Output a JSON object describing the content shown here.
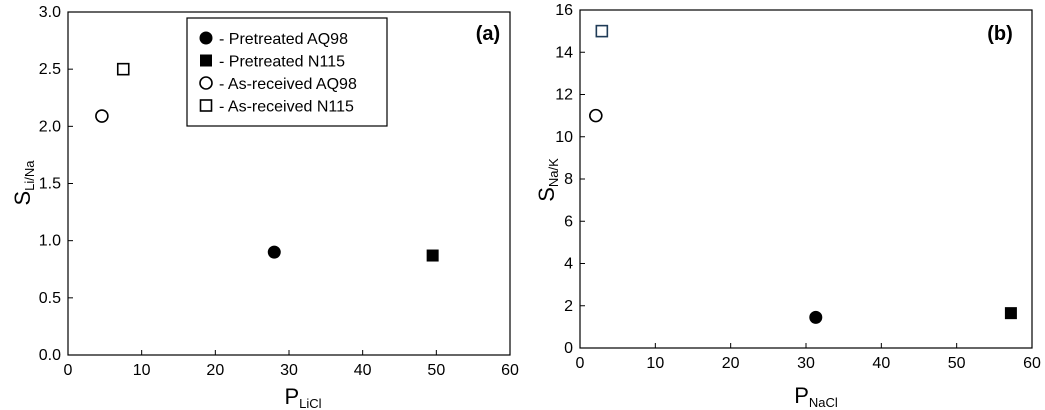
{
  "chart_data": [
    {
      "type": "scatter",
      "panel_label": "(a)",
      "xlabel": "P",
      "xlabel_sub": "LiCl",
      "ylabel": "S",
      "ylabel_sub": "Li/Na",
      "xlim": [
        0,
        60
      ],
      "ylim": [
        0,
        3
      ],
      "xticks": [
        0,
        10,
        20,
        30,
        40,
        50,
        60
      ],
      "xtick_labels": [
        "0",
        "10",
        "20",
        "30",
        "40",
        "50",
        "60"
      ],
      "yticks": [
        0,
        0.5,
        1,
        1.5,
        2,
        2.5,
        3
      ],
      "ytick_labels": [
        "0.0",
        "0.5",
        "1.0",
        "1.5",
        "2.0",
        "2.5",
        "3.0"
      ],
      "grid": false,
      "legend_position": "top-center",
      "series": [
        {
          "name": "- Pretreated AQ98",
          "marker": "filled-circle",
          "color": "#000000",
          "points": [
            {
              "x": 28,
              "y": 0.9
            }
          ]
        },
        {
          "name": "- Pretreated N115",
          "marker": "filled-square",
          "color": "#000000",
          "points": [
            {
              "x": 49.5,
              "y": 0.87
            }
          ]
        },
        {
          "name": "- As-received AQ98",
          "marker": "open-circle",
          "color": "#000000",
          "points": [
            {
              "x": 4.6,
              "y": 2.09
            }
          ]
        },
        {
          "name": "- As-received N115",
          "marker": "open-square",
          "color": "#000000",
          "points": [
            {
              "x": 7.5,
              "y": 2.5
            }
          ]
        }
      ]
    },
    {
      "type": "scatter",
      "panel_label": "(b)",
      "xlabel": "P",
      "xlabel_sub": "NaCl",
      "ylabel": "S",
      "ylabel_sub": "Na/K",
      "xlim": [
        0,
        60
      ],
      "ylim": [
        0,
        16
      ],
      "xticks": [
        0,
        10,
        20,
        30,
        40,
        50,
        60
      ],
      "xtick_labels": [
        "0",
        "10",
        "20",
        "30",
        "40",
        "50",
        "60"
      ],
      "yticks": [
        0,
        2,
        4,
        6,
        8,
        10,
        12,
        14,
        16
      ],
      "ytick_labels": [
        "0",
        "2",
        "4",
        "6",
        "8",
        "10",
        "12",
        "14",
        "16"
      ],
      "grid": false,
      "series": [
        {
          "name": "Pretreated AQ98",
          "marker": "filled-circle",
          "color": "#000000",
          "points": [
            {
              "x": 31.3,
              "y": 1.45
            }
          ]
        },
        {
          "name": "Pretreated N115",
          "marker": "filled-square",
          "color": "#000000",
          "points": [
            {
              "x": 57.2,
              "y": 1.65
            }
          ]
        },
        {
          "name": "As-received AQ98",
          "marker": "open-circle",
          "color": "#000000",
          "points": [
            {
              "x": 2.1,
              "y": 11.0
            }
          ]
        },
        {
          "name": "As-received N115",
          "marker": "open-square",
          "color": "#1f3b57",
          "points": [
            {
              "x": 2.9,
              "y": 15.0
            }
          ]
        }
      ]
    }
  ]
}
